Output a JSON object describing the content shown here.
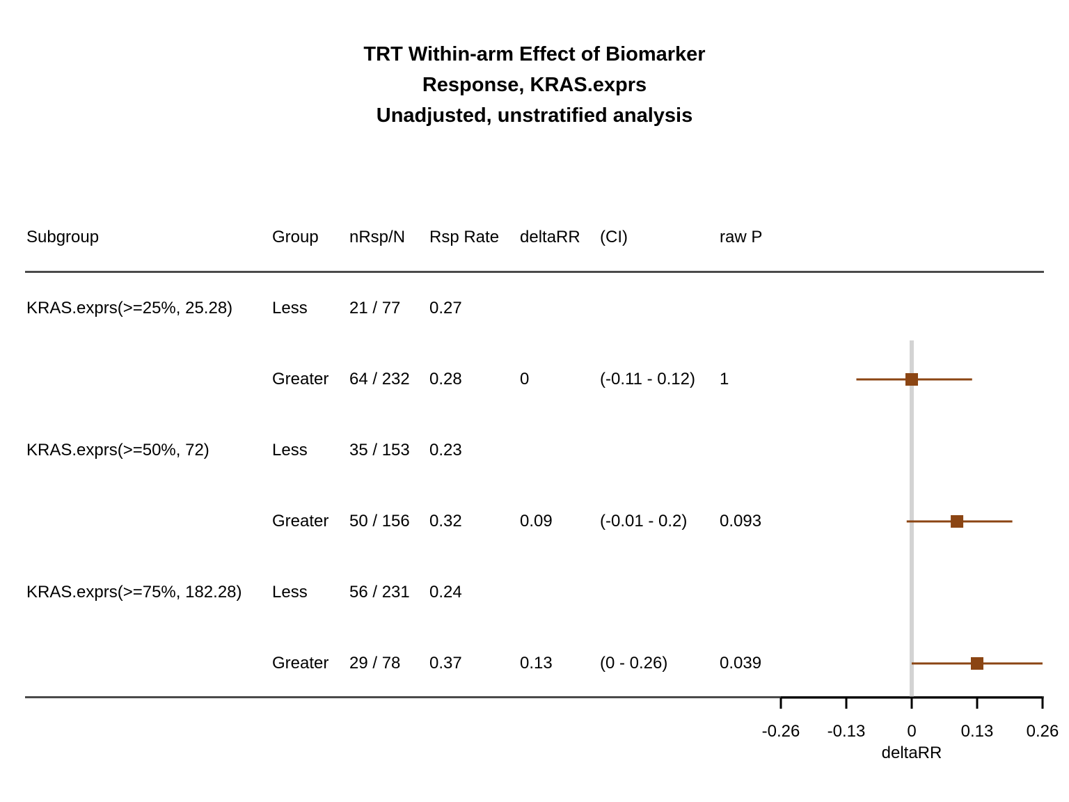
{
  "title_lines": [
    "TRT Within-arm Effect of Biomarker",
    "Response, KRAS.exprs",
    "Unadjusted, unstratified analysis"
  ],
  "table": {
    "headers": {
      "subgroup": "Subgroup",
      "group": "Group",
      "n": "nRsp/N",
      "rate": "Rsp Rate",
      "delta": "deltaRR",
      "ci": "(CI)",
      "p": "raw P"
    },
    "rows": [
      {
        "subgroup": "KRAS.exprs(>=25%, 25.28)",
        "group": "Less",
        "n": "21 / 77",
        "rate": "0.27",
        "delta": "",
        "ci": "",
        "p": ""
      },
      {
        "subgroup": "",
        "group": "Greater",
        "n": "64 / 232",
        "rate": "0.28",
        "delta": "0",
        "ci": "(-0.11 - 0.12)",
        "p": "1"
      },
      {
        "subgroup": "KRAS.exprs(>=50%, 72)",
        "group": "Less",
        "n": "35 / 153",
        "rate": "0.23",
        "delta": "",
        "ci": "",
        "p": ""
      },
      {
        "subgroup": "",
        "group": "Greater",
        "n": "50 / 156",
        "rate": "0.32",
        "delta": "0.09",
        "ci": "(-0.01 - 0.2)",
        "p": "0.093"
      },
      {
        "subgroup": "KRAS.exprs(>=75%, 182.28)",
        "group": "Less",
        "n": "56 / 231",
        "rate": "0.24",
        "delta": "",
        "ci": "",
        "p": ""
      },
      {
        "subgroup": "",
        "group": "Greater",
        "n": "29 / 78",
        "rate": "0.37",
        "delta": "0.13",
        "ci": "(0 - 0.26)",
        "p": "0.039"
      }
    ]
  },
  "chart_data": {
    "type": "forest",
    "xlabel": "deltaRR",
    "xlim": [
      -0.26,
      0.26
    ],
    "x_ticks": [
      -0.26,
      -0.13,
      0,
      0.13,
      0.26
    ],
    "x_tick_labels": [
      "-0.26",
      "-0.13",
      "0",
      "0.13",
      "0.26"
    ],
    "reference_line": 0,
    "points": [
      {
        "row": 1,
        "estimate": 0,
        "ci_low": -0.11,
        "ci_high": 0.12
      },
      {
        "row": 3,
        "estimate": 0.09,
        "ci_low": -0.01,
        "ci_high": 0.2
      },
      {
        "row": 5,
        "estimate": 0.13,
        "ci_low": 0,
        "ci_high": 0.26
      }
    ],
    "marker_color": "#8B4513",
    "reference_color": "#d3d3d3",
    "axis_color": "#000000"
  }
}
